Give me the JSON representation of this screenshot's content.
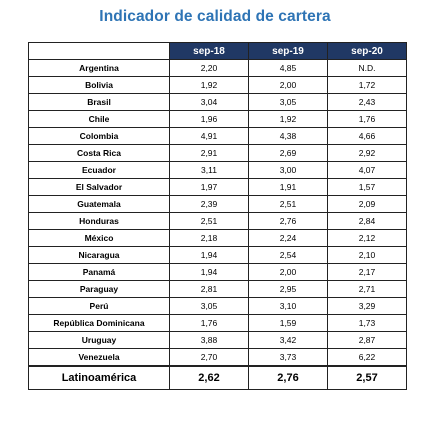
{
  "title": "Indicador de calidad de cartera",
  "columns": [
    "sep-18",
    "sep-19",
    "sep-20"
  ],
  "rows": [
    {
      "country": "Argentina",
      "values": [
        "2,20",
        "4,85",
        "N.D."
      ]
    },
    {
      "country": "Bolivia",
      "values": [
        "1,92",
        "2,00",
        "1,72"
      ]
    },
    {
      "country": "Brasil",
      "values": [
        "3,04",
        "3,05",
        "2,43"
      ]
    },
    {
      "country": "Chile",
      "values": [
        "1,96",
        "1,92",
        "1,76"
      ]
    },
    {
      "country": "Colombia",
      "values": [
        "4,91",
        "4,38",
        "4,66"
      ]
    },
    {
      "country": "Costa Rica",
      "values": [
        "2,91",
        "2,69",
        "2,92"
      ]
    },
    {
      "country": "Ecuador",
      "values": [
        "3,11",
        "3,00",
        "4,07"
      ]
    },
    {
      "country": "El Salvador",
      "values": [
        "1,97",
        "1,91",
        "1,57"
      ]
    },
    {
      "country": "Guatemala",
      "values": [
        "2,39",
        "2,51",
        "2,09"
      ]
    },
    {
      "country": "Honduras",
      "values": [
        "2,51",
        "2,76",
        "2,84"
      ]
    },
    {
      "country": "México",
      "values": [
        "2,18",
        "2,24",
        "2,12"
      ]
    },
    {
      "country": "Nicaragua",
      "values": [
        "1,94",
        "2,54",
        "2,10"
      ]
    },
    {
      "country": "Panamá",
      "values": [
        "1,94",
        "2,00",
        "2,17"
      ]
    },
    {
      "country": "Paraguay",
      "values": [
        "2,81",
        "2,95",
        "2,71"
      ]
    },
    {
      "country": "Perú",
      "values": [
        "3,05",
        "3,10",
        "3,29"
      ]
    },
    {
      "country": "República Dominicana",
      "values": [
        "1,76",
        "1,59",
        "1,73"
      ]
    },
    {
      "country": "Uruguay",
      "values": [
        "3,88",
        "3,42",
        "2,87"
      ]
    },
    {
      "country": "Venezuela",
      "values": [
        "2,70",
        "3,73",
        "6,22"
      ]
    }
  ],
  "total": {
    "country": "Latinoamérica",
    "values": [
      "2,62",
      "2,76",
      "2,57"
    ]
  },
  "colors": {
    "title": "#2E74B5",
    "header_bg": "#203864",
    "header_text": "#ffffff",
    "border": "#222222"
  }
}
